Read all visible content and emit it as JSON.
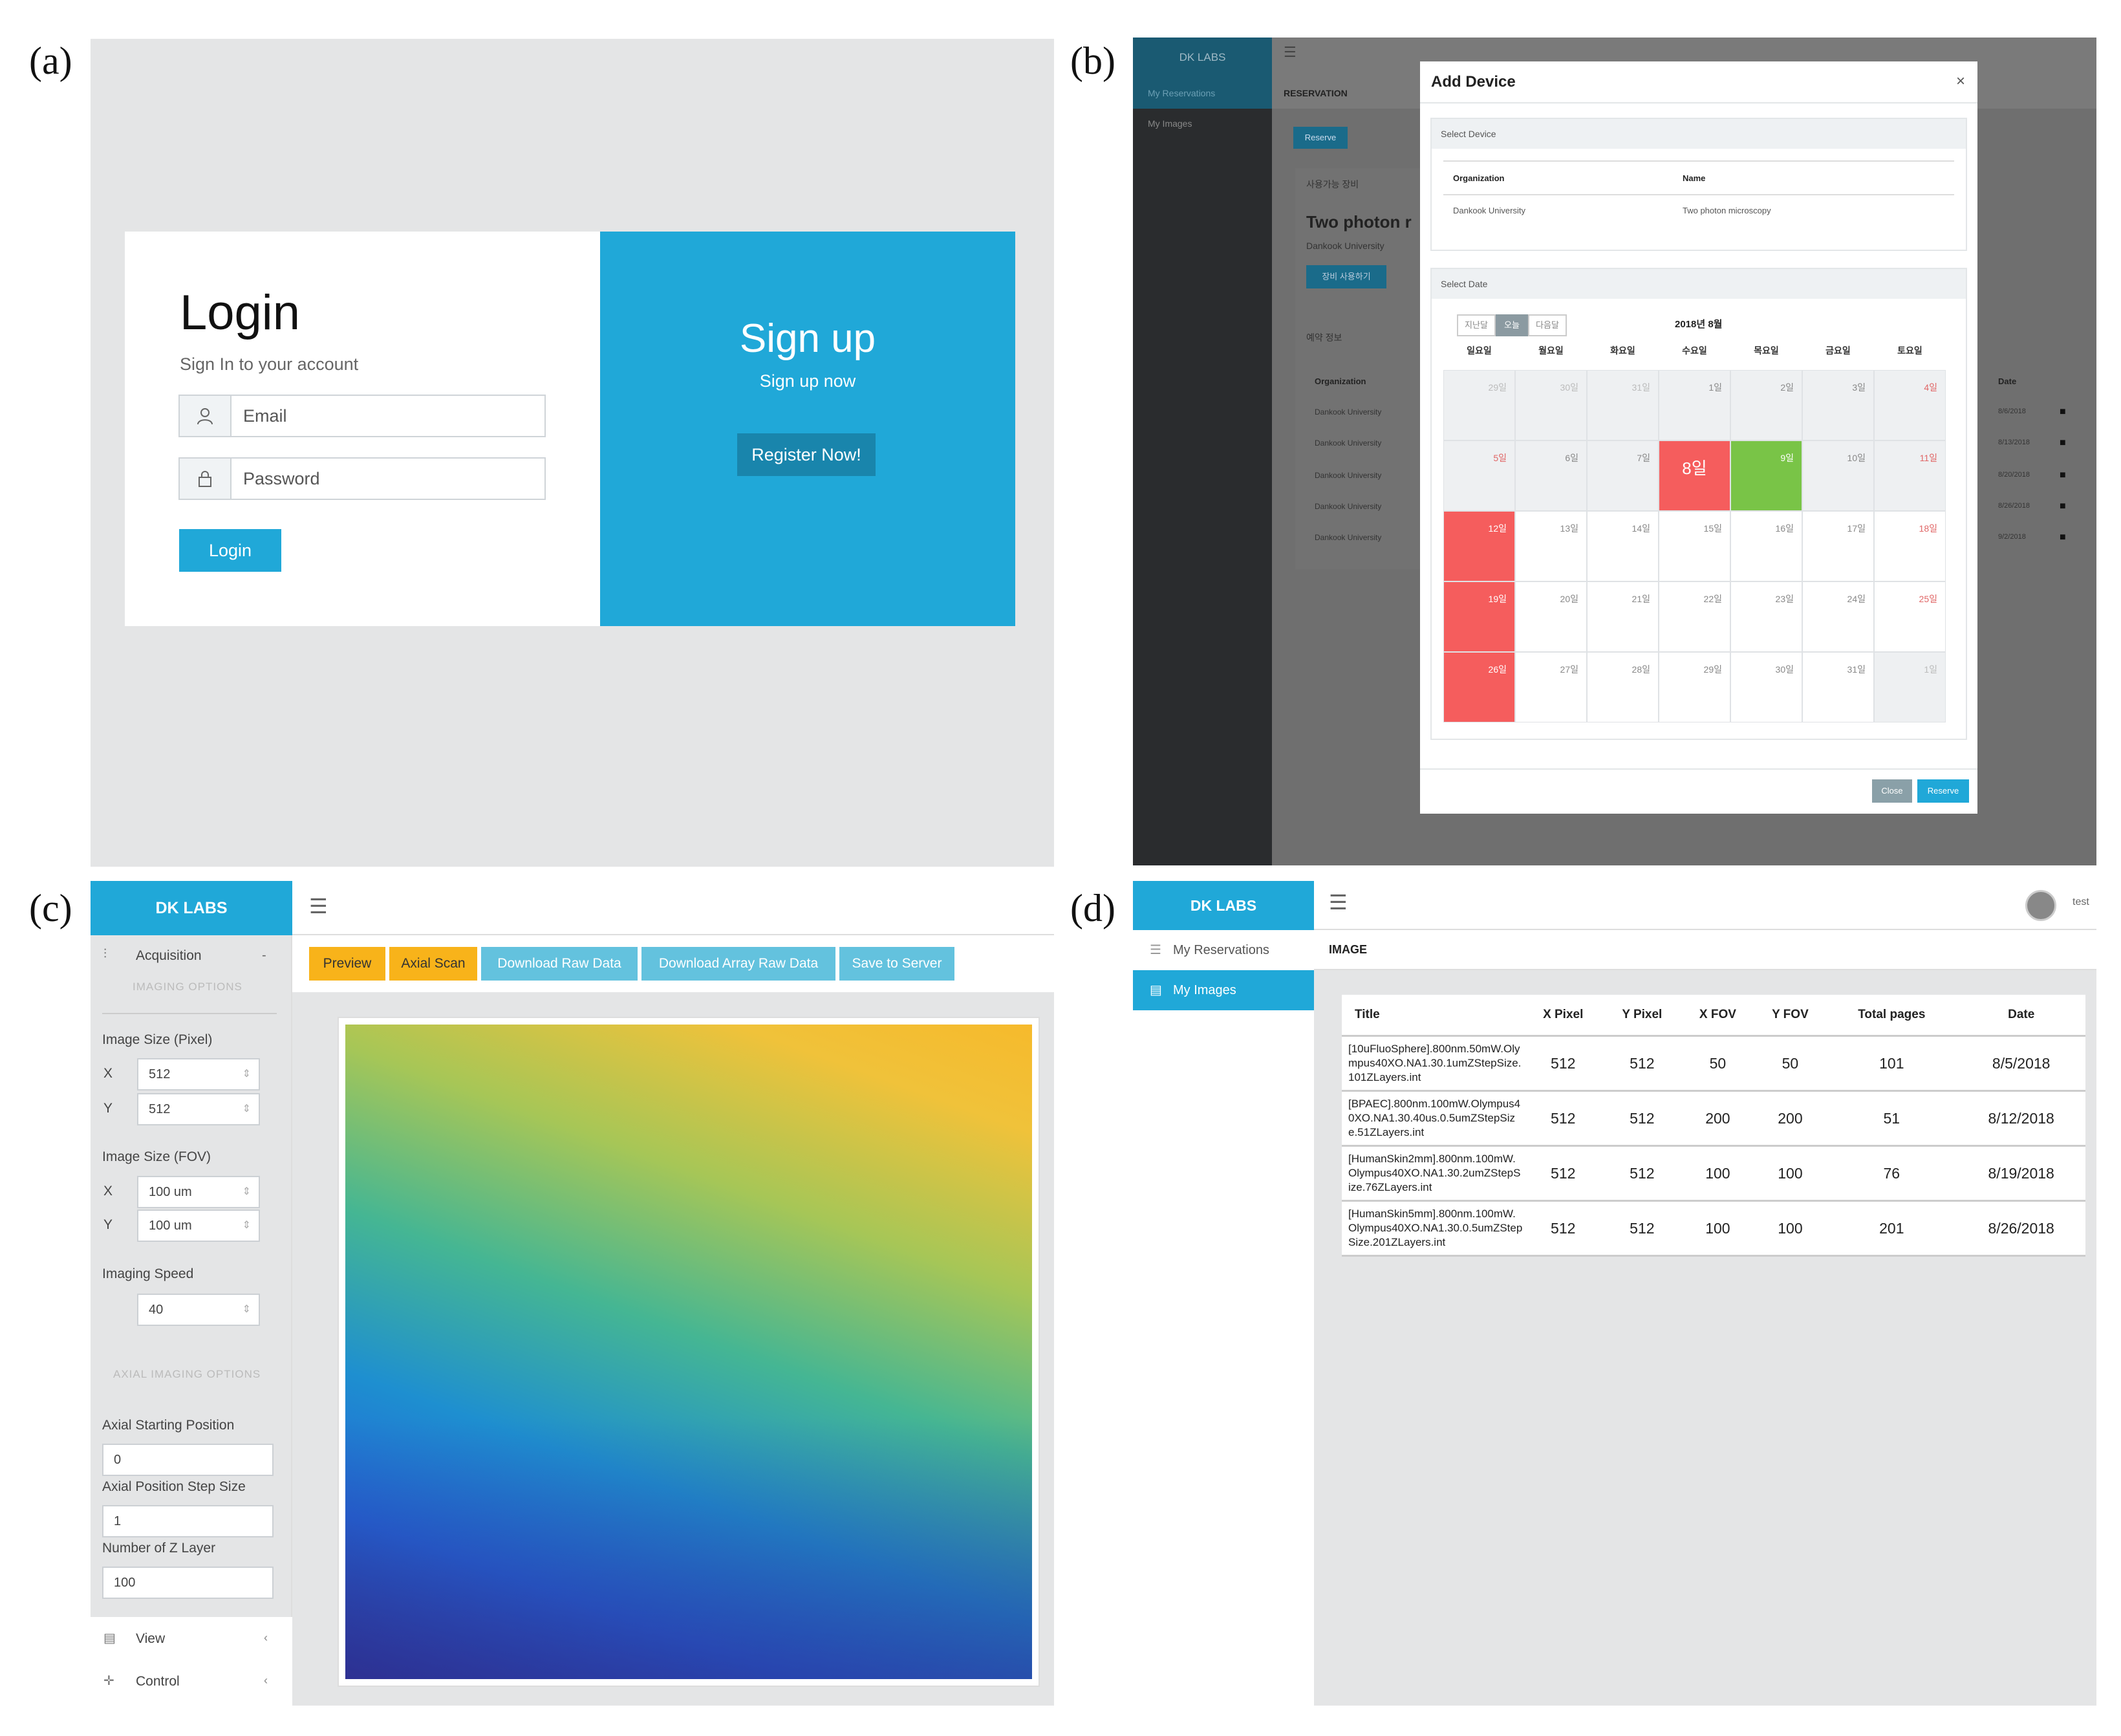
{
  "labels": {
    "a": "(a)",
    "b": "(b)",
    "c": "(c)",
    "d": "(d)"
  },
  "login_panel": {
    "title": "Login",
    "subtitle": "Sign In to your account",
    "email_placeholder": "Email",
    "password_placeholder": "Password",
    "login_button": "Login",
    "signup_title": "Sign up",
    "signup_subtitle": "Sign up now",
    "register_button": "Register Now!",
    "icons": {
      "email": "user-icon",
      "password": "lock-icon"
    }
  },
  "reservation_panel": {
    "brand": "DK LABS",
    "sidebar": [
      "My Reservations",
      "My Images"
    ],
    "breadcrumb": "RESERVATION",
    "reserve_button": "Reserve",
    "card_title": "Two photon r",
    "card_org": "Dankook University",
    "card_button": "장비 사용하기",
    "section_usable": "사용가능 장비",
    "section_reserved": "예약 정보",
    "background_table": {
      "headers": [
        "Organization",
        "Date"
      ],
      "rows": [
        {
          "org": "Dankook University",
          "date": "8/6/2018"
        },
        {
          "org": "Dankook University",
          "date": "8/13/2018"
        },
        {
          "org": "Dankook University",
          "date": "8/20/2018"
        },
        {
          "org": "Dankook University",
          "date": "8/26/2018"
        },
        {
          "org": "Dankook University",
          "date": "9/2/2018"
        }
      ]
    },
    "modal": {
      "title": "Add Device",
      "close_symbol": "×",
      "select_device_heading": "Select Device",
      "device_headers": [
        "Organization",
        "Name"
      ],
      "device_row": [
        "Dankook University",
        "Two photon microscopy"
      ],
      "select_date_heading": "Select Date",
      "nav_buttons": [
        "지난달",
        "오늘",
        "다음달"
      ],
      "month_title": "2018년 8월",
      "weekdays": [
        "일요일",
        "월요일",
        "화요일",
        "수요일",
        "목요일",
        "금요일",
        "토요일"
      ],
      "weeks": [
        [
          "29일",
          "30일",
          "31일",
          "1일",
          "2일",
          "3일",
          "4일"
        ],
        [
          "5일",
          "6일",
          "7일",
          "8일",
          "9일",
          "10일",
          "11일"
        ],
        [
          "12일",
          "13일",
          "14일",
          "15일",
          "16일",
          "17일",
          "18일"
        ],
        [
          "19일",
          "20일",
          "21일",
          "22일",
          "23일",
          "24일",
          "25일"
        ],
        [
          "26일",
          "27일",
          "28일",
          "29일",
          "30일",
          "31일",
          "1일"
        ]
      ],
      "close_button": "Close",
      "reserve_button": "Reserve",
      "colors": {
        "selected_red": "#f55d5d",
        "today_green": "#79c447",
        "weekend_red": "#e06666"
      }
    }
  },
  "acquisition_panel": {
    "brand": "DK LABS",
    "sidebar_header": "Acquisition",
    "imaging_options_label": "IMAGING OPTIONS",
    "image_size_pixel_label": "Image Size (Pixel)",
    "pixel_x": {
      "axis": "X",
      "value": "512"
    },
    "pixel_y": {
      "axis": "Y",
      "value": "512"
    },
    "image_size_fov_label": "Image Size (FOV)",
    "fov_x": {
      "axis": "X",
      "value": "100 um"
    },
    "fov_y": {
      "axis": "Y",
      "value": "100 um"
    },
    "imaging_speed_label": "Imaging Speed",
    "imaging_speed_value": "40",
    "axial_options_label": "AXIAL IMAGING OPTIONS",
    "axial_start_label": "Axial Starting Position",
    "axial_start_value": "0",
    "axial_step_label": "Axial Position Step Size",
    "axial_step_value": "1",
    "z_layers_label": "Number of Z Layer",
    "z_layers_value": "100",
    "nav_view": "View",
    "nav_control": "Control",
    "toolbar": [
      "Preview",
      "Axial Scan",
      "Download Raw Data",
      "Download Array Raw Data",
      "Save to Server"
    ],
    "colors": {
      "orange": "#f8b31a",
      "light_blue": "#63c2de",
      "brand": "#20a8d8"
    }
  },
  "images_panel": {
    "brand": "DK LABS",
    "sidebar": [
      "My Reservations",
      "My Images"
    ],
    "breadcrumb": "IMAGE",
    "user": "test",
    "table": {
      "headers": [
        "Title",
        "X Pixel",
        "Y Pixel",
        "X FOV",
        "Y FOV",
        "Total pages",
        "Date"
      ],
      "rows": [
        {
          "title": "[10uFluoSphere].800nm.50mW.Olympus40XO.NA1.30.1umZStepSize.101ZLayers.int",
          "x_pixel": "512",
          "y_pixel": "512",
          "x_fov": "50",
          "y_fov": "50",
          "pages": "101",
          "date": "8/5/2018"
        },
        {
          "title": "[BPAEC].800nm.100mW.Olympus40XO.NA1.30.40us.0.5umZStepSize.51ZLayers.int",
          "x_pixel": "512",
          "y_pixel": "512",
          "x_fov": "200",
          "y_fov": "200",
          "pages": "51",
          "date": "8/12/2018"
        },
        {
          "title": "[HumanSkin2mm].800nm.100mW.Olympus40XO.NA1.30.2umZStepSize.76ZLayers.int",
          "x_pixel": "512",
          "y_pixel": "512",
          "x_fov": "100",
          "y_fov": "100",
          "pages": "76",
          "date": "8/19/2018"
        },
        {
          "title": "[HumanSkin5mm].800nm.100mW.Olympus40XO.NA1.30.0.5umZStepSize.201ZLayers.int",
          "x_pixel": "512",
          "y_pixel": "512",
          "x_fov": "100",
          "y_fov": "100",
          "pages": "201",
          "date": "8/26/2018"
        }
      ]
    }
  }
}
